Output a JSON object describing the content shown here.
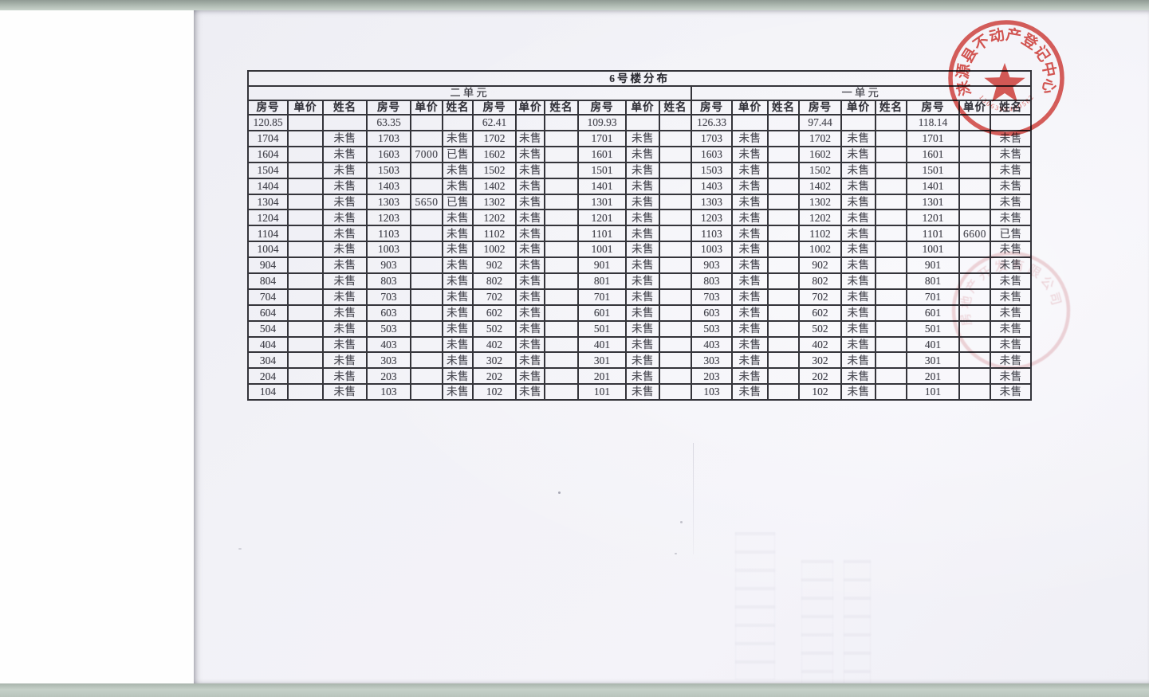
{
  "document": {
    "title": "6号楼分布",
    "units": [
      "二单元",
      "一单元"
    ],
    "column_headers": [
      "房号",
      "单价",
      "姓名"
    ],
    "areas": [
      "120.85",
      "63.35",
      "62.41",
      "109.93",
      "126.33",
      "97.44",
      "118.14"
    ],
    "rows": [
      [
        "1704",
        "",
        "未售",
        "1703",
        "",
        "未售",
        "1702",
        "未售",
        "",
        "1701",
        "未售",
        "",
        "1703",
        "未售",
        "",
        "1702",
        "未售",
        "",
        "1701",
        "",
        "未售"
      ],
      [
        "1604",
        "",
        "未售",
        "1603",
        "7000",
        "已售",
        "1602",
        "未售",
        "",
        "1601",
        "未售",
        "",
        "1603",
        "未售",
        "",
        "1602",
        "未售",
        "",
        "1601",
        "",
        "未售"
      ],
      [
        "1504",
        "",
        "未售",
        "1503",
        "",
        "未售",
        "1502",
        "未售",
        "",
        "1501",
        "未售",
        "",
        "1503",
        "未售",
        "",
        "1502",
        "未售",
        "",
        "1501",
        "",
        "未售"
      ],
      [
        "1404",
        "",
        "未售",
        "1403",
        "",
        "未售",
        "1402",
        "未售",
        "",
        "1401",
        "未售",
        "",
        "1403",
        "未售",
        "",
        "1402",
        "未售",
        "",
        "1401",
        "",
        "未售"
      ],
      [
        "1304",
        "",
        "未售",
        "1303",
        "5650",
        "已售",
        "1302",
        "未售",
        "",
        "1301",
        "未售",
        "",
        "1303",
        "未售",
        "",
        "1302",
        "未售",
        "",
        "1301",
        "",
        "未售"
      ],
      [
        "1204",
        "",
        "未售",
        "1203",
        "",
        "未售",
        "1202",
        "未售",
        "",
        "1201",
        "未售",
        "",
        "1203",
        "未售",
        "",
        "1202",
        "未售",
        "",
        "1201",
        "",
        "未售"
      ],
      [
        "1104",
        "",
        "未售",
        "1103",
        "",
        "未售",
        "1102",
        "未售",
        "",
        "1101",
        "未售",
        "",
        "1103",
        "未售",
        "",
        "1102",
        "未售",
        "",
        "1101",
        "6600",
        "已售"
      ],
      [
        "1004",
        "",
        "未售",
        "1003",
        "",
        "未售",
        "1002",
        "未售",
        "",
        "1001",
        "未售",
        "",
        "1003",
        "未售",
        "",
        "1002",
        "未售",
        "",
        "1001",
        "",
        "未售"
      ],
      [
        "904",
        "",
        "未售",
        "903",
        "",
        "未售",
        "902",
        "未售",
        "",
        "901",
        "未售",
        "",
        "903",
        "未售",
        "",
        "902",
        "未售",
        "",
        "901",
        "",
        "未售"
      ],
      [
        "804",
        "",
        "未售",
        "803",
        "",
        "未售",
        "802",
        "未售",
        "",
        "801",
        "未售",
        "",
        "803",
        "未售",
        "",
        "802",
        "未售",
        "",
        "801",
        "",
        "未售"
      ],
      [
        "704",
        "",
        "未售",
        "703",
        "",
        "未售",
        "702",
        "未售",
        "",
        "701",
        "未售",
        "",
        "703",
        "未售",
        "",
        "702",
        "未售",
        "",
        "701",
        "",
        "未售"
      ],
      [
        "604",
        "",
        "未售",
        "603",
        "",
        "未售",
        "602",
        "未售",
        "",
        "601",
        "未售",
        "",
        "603",
        "未售",
        "",
        "602",
        "未售",
        "",
        "601",
        "",
        "未售"
      ],
      [
        "504",
        "",
        "未售",
        "503",
        "",
        "未售",
        "502",
        "未售",
        "",
        "501",
        "未售",
        "",
        "503",
        "未售",
        "",
        "502",
        "未售",
        "",
        "501",
        "",
        "未售"
      ],
      [
        "404",
        "",
        "未售",
        "403",
        "",
        "未售",
        "402",
        "未售",
        "",
        "401",
        "未售",
        "",
        "403",
        "未售",
        "",
        "402",
        "未售",
        "",
        "401",
        "",
        "未售"
      ],
      [
        "304",
        "",
        "未售",
        "303",
        "",
        "未售",
        "302",
        "未售",
        "",
        "301",
        "未售",
        "",
        "303",
        "未售",
        "",
        "302",
        "未售",
        "",
        "301",
        "",
        "未售"
      ],
      [
        "204",
        "",
        "未售",
        "203",
        "",
        "未售",
        "202",
        "未售",
        "",
        "201",
        "未售",
        "",
        "203",
        "未售",
        "",
        "202",
        "未售",
        "",
        "201",
        "",
        "未售"
      ],
      [
        "104",
        "",
        "未售",
        "103",
        "",
        "未售",
        "102",
        "未售",
        "",
        "101",
        "未售",
        "",
        "103",
        "未售",
        "",
        "102",
        "未售",
        "",
        "101",
        "",
        "未售"
      ]
    ]
  },
  "stamps": {
    "registration_seal": {
      "ring_text": "涞源县不动产登记中心",
      "serial": "1306308400582",
      "color": "#d43a34"
    },
    "company_seal": {
      "ring_text": "房地产开发有限公司",
      "color": "#e2a6ab"
    }
  }
}
